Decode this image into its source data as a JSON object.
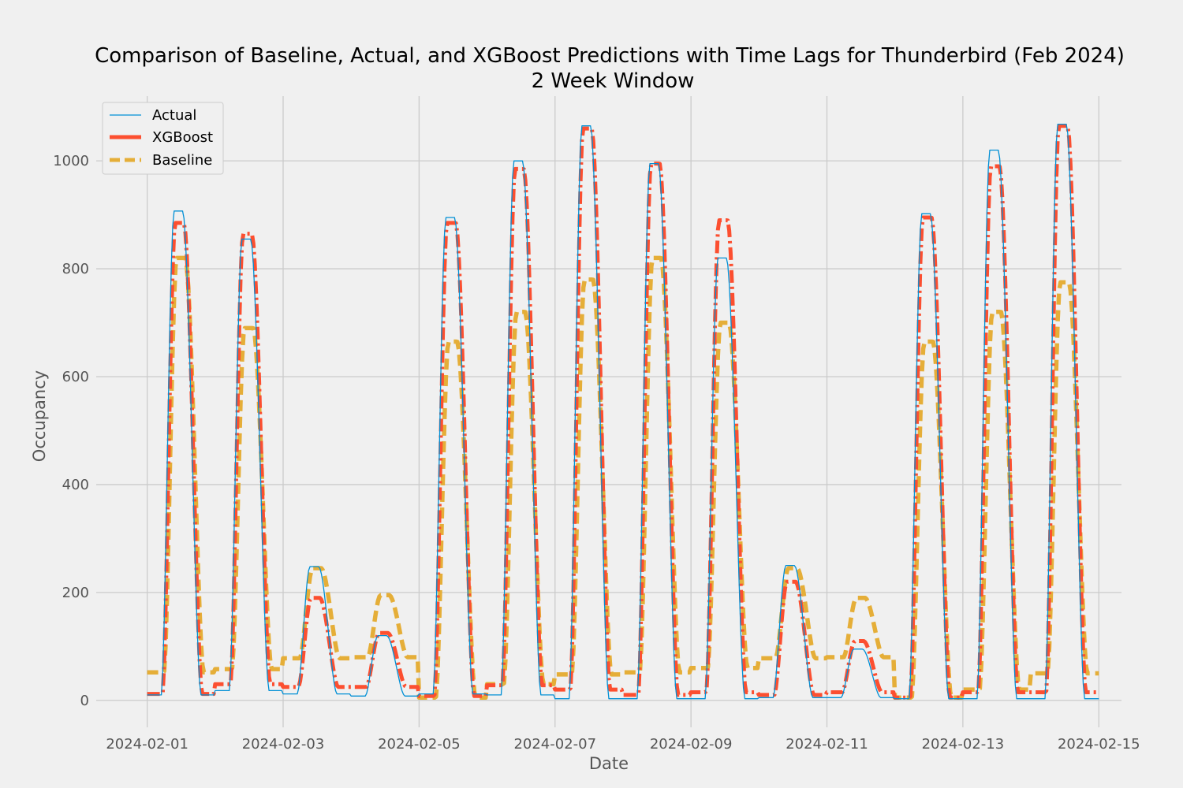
{
  "chart_data": {
    "type": "line",
    "title": "Comparison of Baseline, Actual, and XGBoost Predictions with Time Lags for Thunderbird (Feb 2024)",
    "subtitle": "2 Week Window",
    "xlabel": "Date",
    "ylabel": "Occupancy",
    "x_start": "2024-02-01",
    "x_end": "2024-02-15",
    "xlim": [
      "2024-01-31 06:00",
      "2024-02-15 08:00"
    ],
    "ylim": [
      -50,
      1120
    ],
    "x_ticks": [
      "2024-02-01",
      "2024-02-03",
      "2024-02-05",
      "2024-02-07",
      "2024-02-09",
      "2024-02-11",
      "2024-02-13",
      "2024-02-15"
    ],
    "y_ticks": [
      0,
      200,
      400,
      600,
      800,
      1000
    ],
    "grid": true,
    "legend_position": "top-left",
    "series": [
      {
        "name": "Actual",
        "color": "#008fd5",
        "style": "solid-thin",
        "peaks": [
          {
            "pk": 907,
            "trough": 10
          },
          {
            "pk": 855,
            "trough": 18
          },
          {
            "pk": 248,
            "trough": 12
          },
          {
            "pk": 120,
            "trough": 8
          },
          {
            "pk": 895,
            "trough": 12
          },
          {
            "pk": 1000,
            "trough": 10
          },
          {
            "pk": 1065,
            "trough": 3
          },
          {
            "pk": 995,
            "trough": 3
          },
          {
            "pk": 820,
            "trough": 3
          },
          {
            "pk": 250,
            "trough": 5
          },
          {
            "pk": 95,
            "trough": 5
          },
          {
            "pk": 902,
            "trough": 3
          },
          {
            "pk": 1020,
            "trough": 3
          },
          {
            "pk": 1068,
            "trough": 3
          }
        ]
      },
      {
        "name": "XGBoost",
        "color": "#fc4f30",
        "style": "dashdot-thick",
        "peaks": [
          {
            "pk": 885,
            "trough": 12
          },
          {
            "pk": 865,
            "trough": 30
          },
          {
            "pk": 190,
            "trough": 25
          },
          {
            "pk": 125,
            "trough": 25
          },
          {
            "pk": 885,
            "trough": 8
          },
          {
            "pk": 985,
            "trough": 28
          },
          {
            "pk": 1060,
            "trough": 20
          },
          {
            "pk": 995,
            "trough": 10
          },
          {
            "pk": 890,
            "trough": 15
          },
          {
            "pk": 220,
            "trough": 10
          },
          {
            "pk": 110,
            "trough": 15
          },
          {
            "pk": 895,
            "trough": 5
          },
          {
            "pk": 990,
            "trough": 15
          },
          {
            "pk": 1065,
            "trough": 15
          }
        ]
      },
      {
        "name": "Baseline",
        "color": "#e5ae38",
        "style": "dashed-thick",
        "peaks": [
          {
            "pk": 820,
            "trough": 52
          },
          {
            "pk": 690,
            "trough": 58
          },
          {
            "pk": 245,
            "trough": 78
          },
          {
            "pk": 195,
            "trough": 80
          },
          {
            "pk": 665,
            "trough": 5
          },
          {
            "pk": 720,
            "trough": 30
          },
          {
            "pk": 780,
            "trough": 48
          },
          {
            "pk": 820,
            "trough": 52
          },
          {
            "pk": 700,
            "trough": 60
          },
          {
            "pk": 245,
            "trough": 78
          },
          {
            "pk": 190,
            "trough": 80
          },
          {
            "pk": 665,
            "trough": 5
          },
          {
            "pk": 720,
            "trough": 20
          },
          {
            "pk": 775,
            "trough": 50
          }
        ]
      }
    ]
  }
}
